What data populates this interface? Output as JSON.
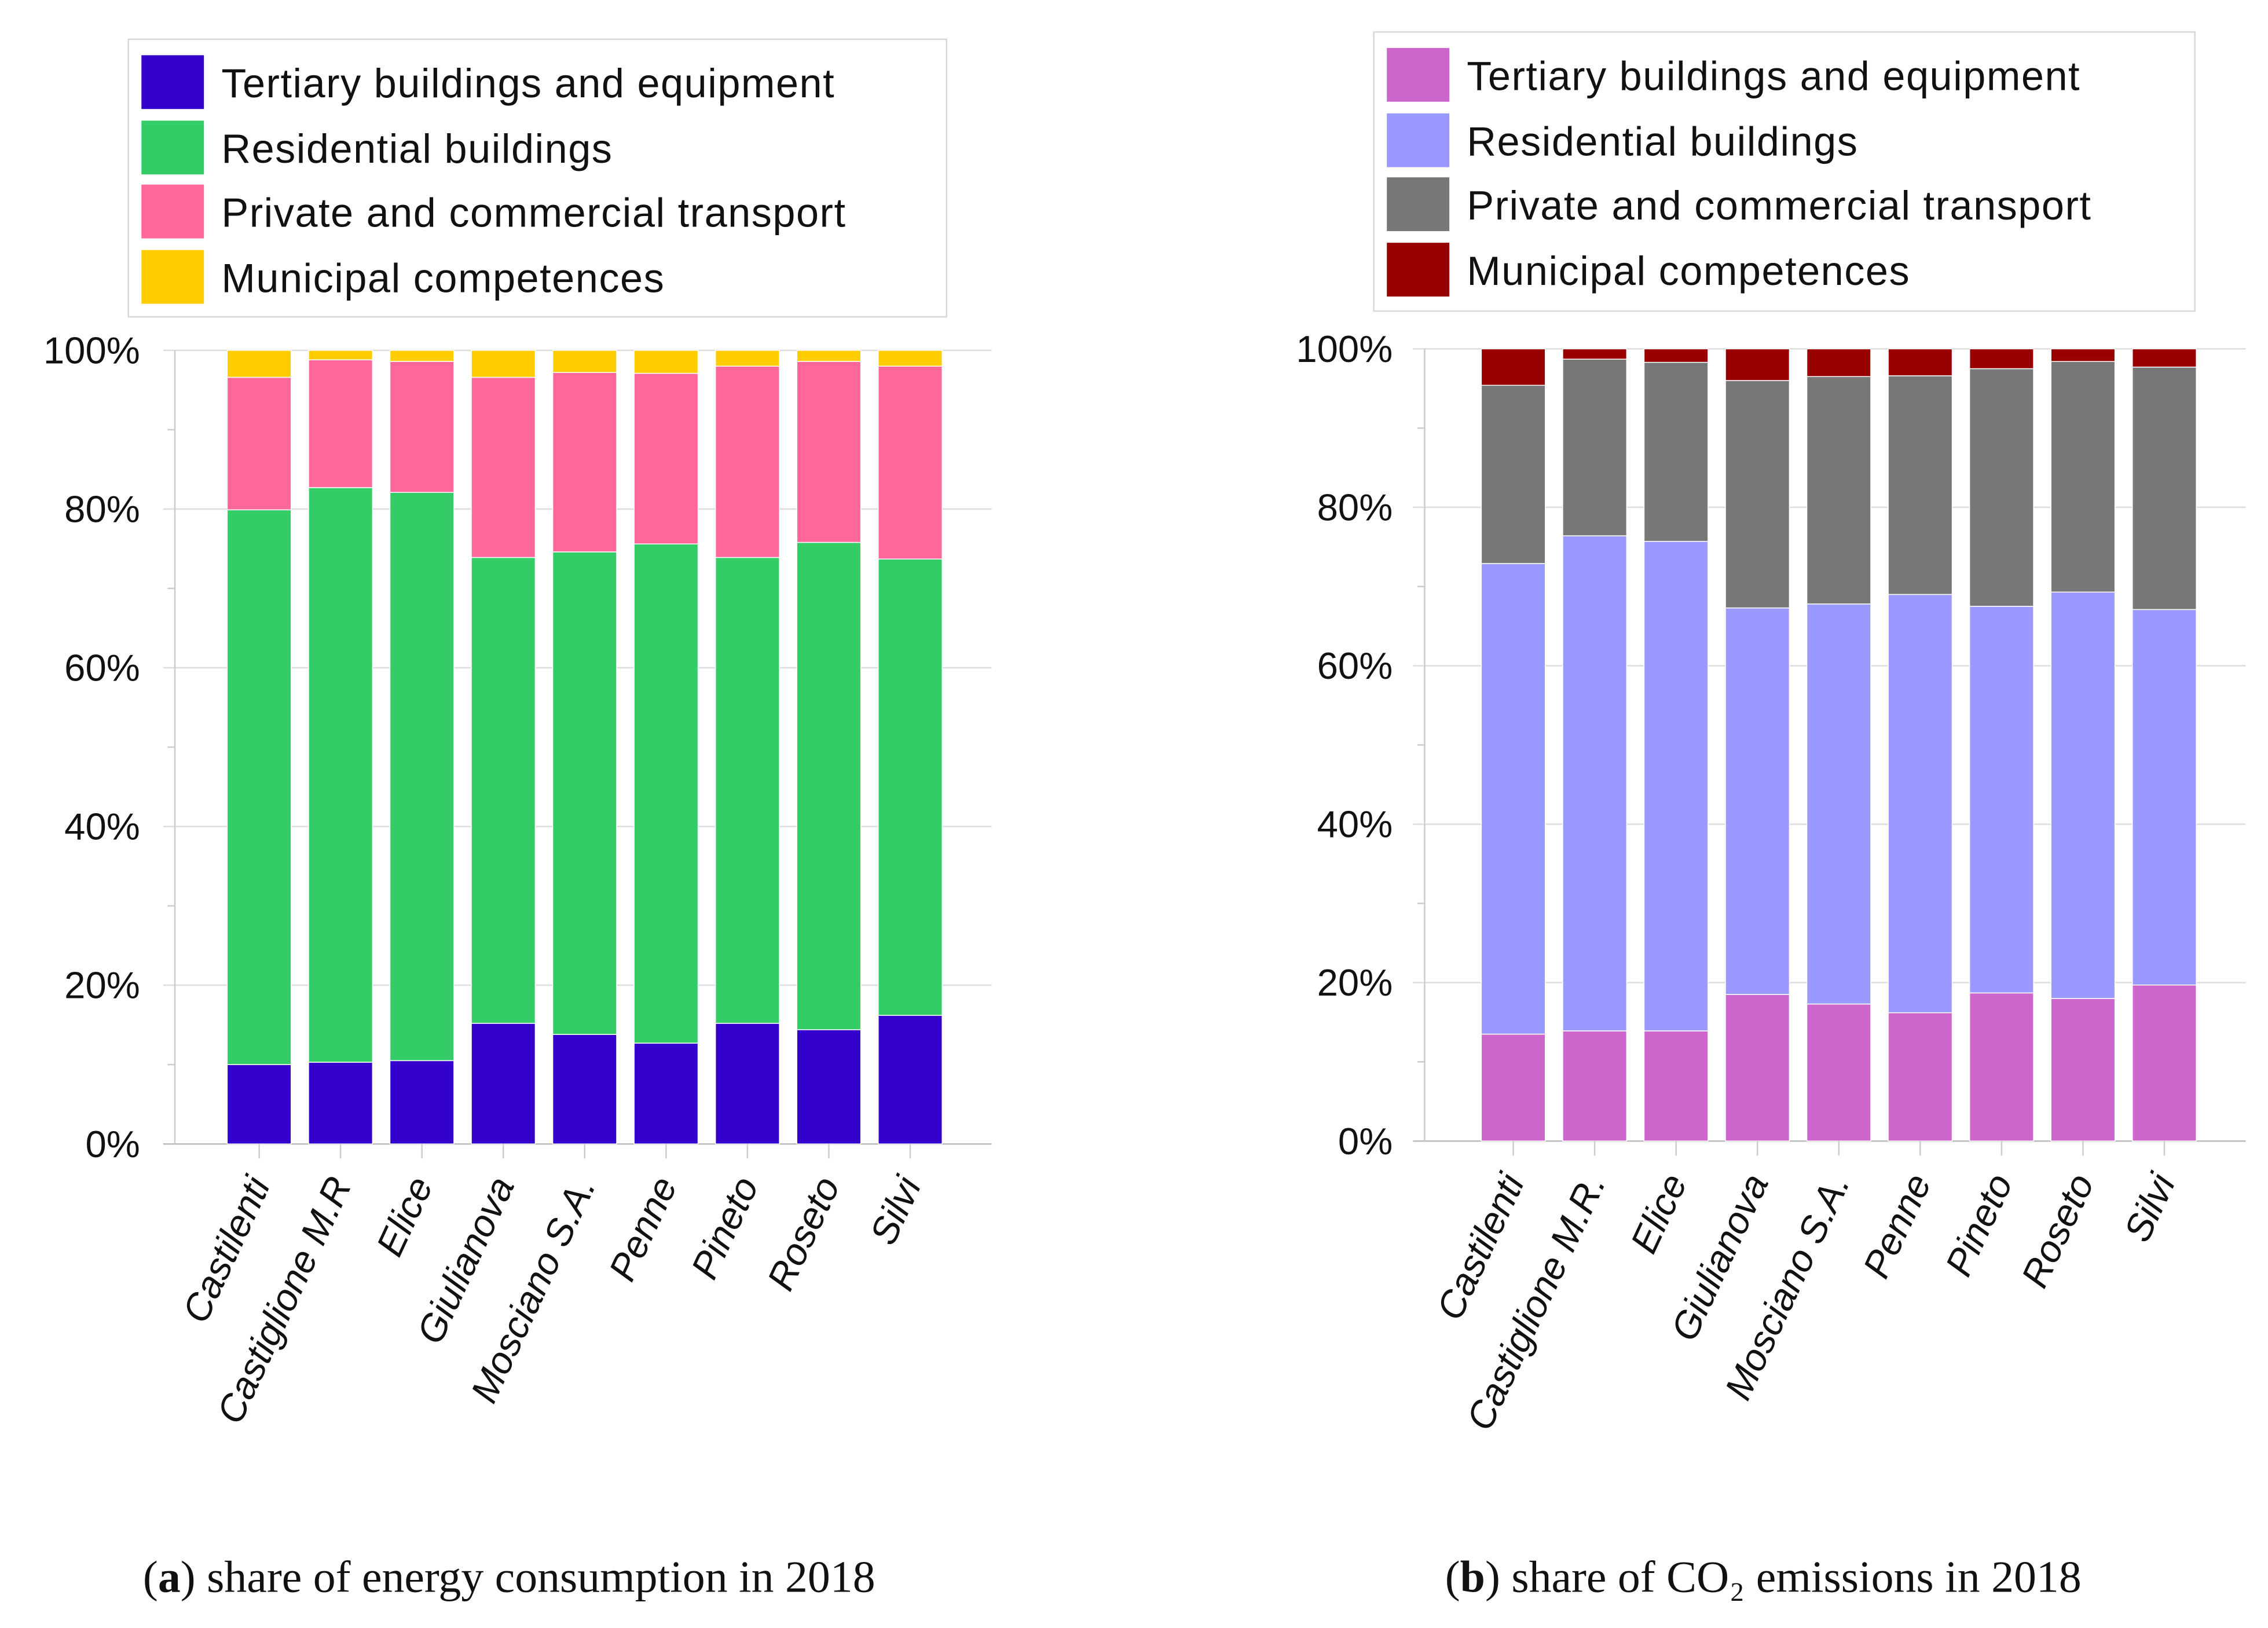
{
  "chart_data": [
    {
      "type": "bar",
      "stacked": true,
      "caption_letter": "a",
      "caption_text": "share of energy consumption in 2018",
      "categories": [
        "Castilenti",
        "Castiglione M.R",
        "Elice",
        "Giulianova",
        "Mosciano S.A.",
        "Penne",
        "Pineto",
        "Roseto",
        "Silvi"
      ],
      "ylim": [
        0,
        100
      ],
      "yticks": [
        "0%",
        "20%",
        "40%",
        "60%",
        "80%",
        "100%"
      ],
      "grid": true,
      "legend_position": "top",
      "series": [
        {
          "name": "Tertiary buildings and equipment",
          "color": "#3300cc",
          "values": [
            10.0,
            10.3,
            10.5,
            15.2,
            13.8,
            12.7,
            15.2,
            14.4,
            16.2
          ]
        },
        {
          "name": "Residential buildings",
          "color": "#33cc66",
          "values": [
            69.9,
            72.4,
            71.6,
            58.7,
            60.8,
            62.9,
            58.7,
            61.4,
            57.5
          ]
        },
        {
          "name": "Private and commercial transport",
          "color": "#ff6699",
          "values": [
            16.7,
            16.1,
            16.5,
            22.7,
            22.6,
            21.5,
            24.1,
            22.8,
            24.3
          ]
        },
        {
          "name": "Municipal competences",
          "color": "#ffcc00",
          "values": [
            3.4,
            1.2,
            1.4,
            3.4,
            2.8,
            2.9,
            2.0,
            1.4,
            2.0
          ]
        }
      ]
    },
    {
      "type": "bar",
      "stacked": true,
      "caption_letter": "b",
      "caption_text": "share of CO₂ emissions in 2018",
      "categories": [
        "Castilenti",
        "Castiglione M.R.",
        "Elice",
        "Giulianova",
        "Mosciano S.A.",
        "Penne",
        "Pineto",
        "Roseto",
        "Silvi"
      ],
      "ylim": [
        0,
        100
      ],
      "yticks": [
        "0%",
        "20%",
        "40%",
        "60%",
        "80%",
        "100%"
      ],
      "grid": true,
      "legend_position": "top",
      "series": [
        {
          "name": "Tertiary buildings and equipment",
          "color": "#cc66cc",
          "values": [
            13.5,
            13.9,
            13.9,
            18.5,
            17.3,
            16.2,
            18.7,
            18.0,
            19.7
          ]
        },
        {
          "name": "Residential buildings",
          "color": "#9999ff",
          "values": [
            59.4,
            62.5,
            61.8,
            48.8,
            50.5,
            52.8,
            48.8,
            51.3,
            47.4
          ]
        },
        {
          "name": "Private and commercial transport",
          "color": "#777777",
          "values": [
            22.5,
            22.3,
            22.6,
            28.7,
            28.7,
            27.6,
            30.0,
            29.1,
            30.6
          ]
        },
        {
          "name": "Municipal competences",
          "color": "#990000",
          "values": [
            4.6,
            1.3,
            1.7,
            4.0,
            3.5,
            3.4,
            2.5,
            1.6,
            2.3
          ]
        }
      ]
    }
  ]
}
